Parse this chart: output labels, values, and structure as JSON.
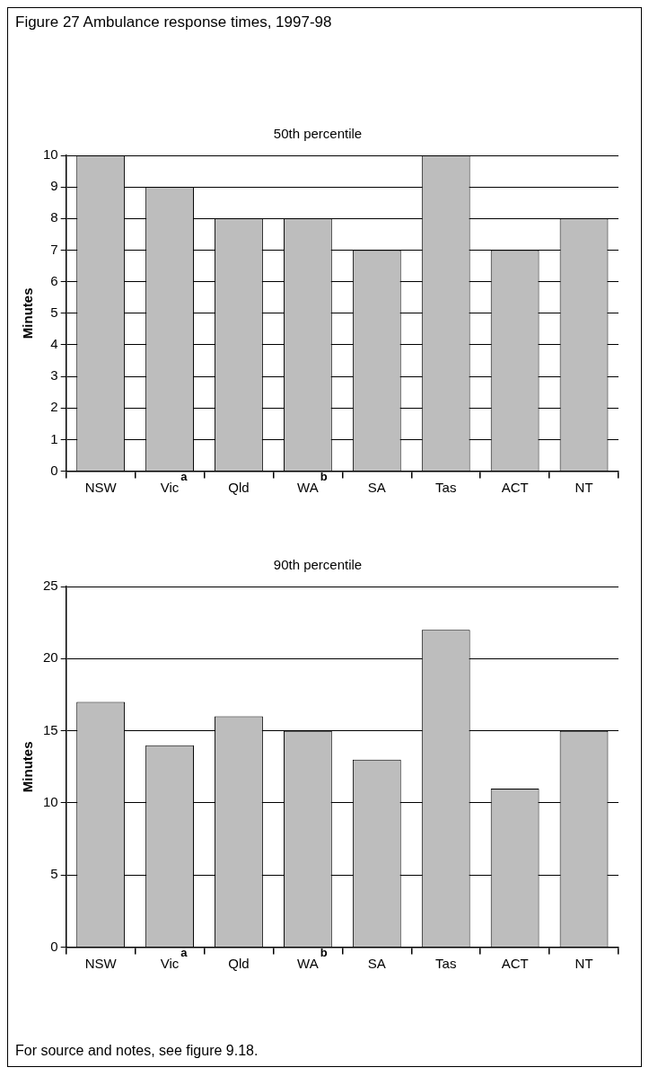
{
  "chart_data": [
    {
      "type": "bar",
      "title": "Figure 27  Ambulance response times, 1997-98",
      "subtitle": "50th percentile",
      "ylabel": "Minutes",
      "categories": [
        "NSW",
        "Vic$^{a}$",
        "Qld",
        "WA$^{b}$",
        "SA",
        "Tas",
        "ACT",
        "NT"
      ],
      "values": [
        10,
        9,
        8,
        8,
        7,
        10,
        7,
        8
      ],
      "color": "#bdbdbd",
      "ylim": [
        0,
        10
      ],
      "yticks": [
        0,
        1,
        2,
        3,
        4,
        5,
        6,
        7,
        8,
        9,
        10
      ],
      "grid": "y",
      "legend": false
    },
    {
      "type": "bar",
      "subtitle": "90th percentile",
      "ylabel": "Minutes",
      "categories": [
        "NSW",
        "Vic$^{a}$",
        "Qld",
        "WA$^{b}$",
        "SA",
        "Tas",
        "ACT",
        "NT"
      ],
      "values": [
        17,
        14,
        16,
        15,
        13,
        22,
        11,
        15
      ],
      "color": "#bdbdbd",
      "ylim": [
        0,
        25
      ],
      "yticks": [
        0,
        5,
        10,
        15,
        20,
        25
      ],
      "grid": "y",
      "legend": false,
      "annotations": [
        "For source and notes, see figure 9.18."
      ]
    }
  ]
}
